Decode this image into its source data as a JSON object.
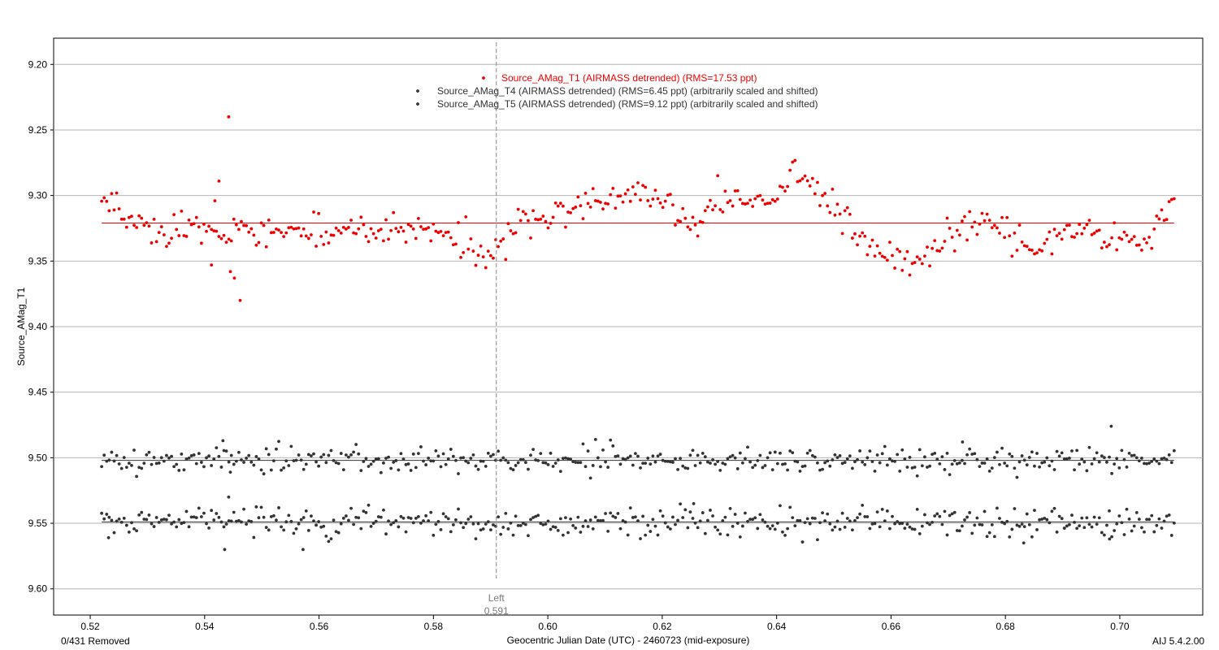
{
  "chart_data": {
    "type": "scatter",
    "title": "",
    "xlabel": "Geocentric Julian Date (UTC) - 2460723 (mid-exposure)",
    "ylabel": "Source_AMag_T1",
    "xlim": [
      0.5136,
      0.7145
    ],
    "ylim": [
      9.18,
      9.62
    ],
    "y_inverted": true,
    "grid": "horizontal",
    "legend_position": "top-center",
    "x_ticks": [
      "0.52",
      "0.54",
      "0.56",
      "0.58",
      "0.60",
      "0.62",
      "0.64",
      "0.66",
      "0.68",
      "0.70"
    ],
    "y_ticks": [
      "9.20",
      "9.25",
      "9.30",
      "9.35",
      "9.40",
      "9.45",
      "9.50",
      "9.55",
      "9.60"
    ],
    "x_start": 0.522,
    "x_end": 0.7095,
    "series": [
      {
        "name": "Source_AMag_T1 (AIRMASS detrended) (RMS=17.53 ppt)",
        "color": "#ee0000",
        "fit_level": 9.321,
        "profile_x": [
          0.522,
          0.53,
          0.54,
          0.545,
          0.55,
          0.56,
          0.57,
          0.58,
          0.585,
          0.59,
          0.595,
          0.6,
          0.605,
          0.61,
          0.615,
          0.62,
          0.625,
          0.63,
          0.635,
          0.64,
          0.643,
          0.648,
          0.652,
          0.658,
          0.664,
          0.67,
          0.675,
          0.68,
          0.685,
          0.69,
          0.695,
          0.7,
          0.705,
          0.7095
        ],
        "profile_y": [
          9.303,
          9.327,
          9.327,
          9.326,
          9.328,
          9.33,
          9.326,
          9.325,
          9.335,
          9.352,
          9.318,
          9.315,
          9.31,
          9.303,
          9.298,
          9.303,
          9.323,
          9.302,
          9.305,
          9.298,
          9.285,
          9.298,
          9.318,
          9.343,
          9.352,
          9.332,
          9.322,
          9.33,
          9.34,
          9.33,
          9.327,
          9.333,
          9.335,
          9.302
        ],
        "scatter_amp": 0.006,
        "outliers": [
          [
            0.5442,
            9.24
          ],
          [
            0.5425,
            9.289
          ],
          [
            0.5418,
            9.304
          ],
          [
            0.5445,
            9.358
          ],
          [
            0.5452,
            9.363
          ],
          [
            0.5462,
            9.38
          ],
          [
            0.5412,
            9.353
          ]
        ]
      },
      {
        "name": "Source_AMag_T4 (AIRMASS detrended) (RMS=6.45 ppt) (arbitrarily scaled and shifted)",
        "color": "#333333",
        "fit_level": 9.502,
        "scatter_amp": 0.0048,
        "outliers": [
          [
            0.6985,
            9.476
          ],
          [
            0.5432,
            9.487
          ],
          [
            0.5445,
            9.511
          ],
          [
            0.6725,
            9.488
          ]
        ]
      },
      {
        "name": "Source_AMag_T5 (AIRMASS detrended) (RMS=9.12 ppt) (arbitrarily scaled and shifted)",
        "color": "#333333",
        "fit_level": 9.549,
        "scatter_amp": 0.0058,
        "outliers": [
          [
            0.5442,
            9.53
          ],
          [
            0.5435,
            9.57
          ],
          [
            0.5572,
            9.57
          ],
          [
            0.6255,
            9.535
          ],
          [
            0.6832,
            9.565
          ],
          [
            0.6982,
            9.562
          ],
          [
            0.5232,
            9.561
          ]
        ]
      }
    ],
    "markers": [
      {
        "label": "Left",
        "value_label": "0.591",
        "x": 0.591
      }
    ]
  },
  "footer": {
    "removed": "0/431 Removed",
    "version": "AIJ 5.4.2.00"
  }
}
